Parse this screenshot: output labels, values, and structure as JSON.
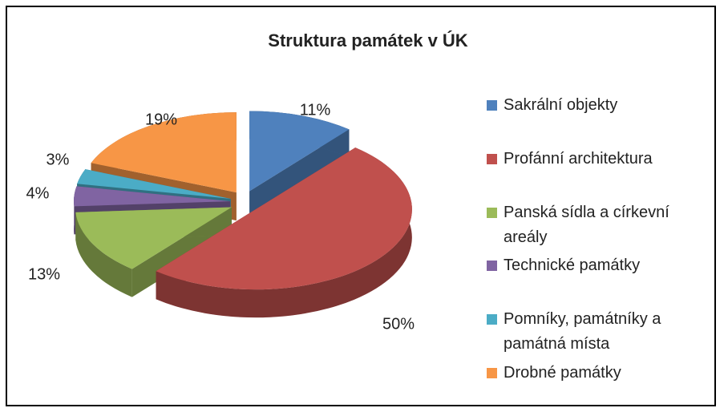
{
  "chart_data": {
    "type": "pie",
    "title": "Struktura památek v ÚK",
    "categories": [
      "Sakrální objekty",
      "Profánní architektura",
      "Panská sídla a církevní areály",
      "Technické památky",
      "Pomníky, památníky a památná místa",
      "Drobné památky"
    ],
    "values": [
      11,
      50,
      13,
      4,
      3,
      19
    ],
    "value_labels": [
      "11%",
      "50%",
      "13%",
      "4%",
      "3%",
      "19%"
    ],
    "colors": [
      "#4f81bd",
      "#c0504d",
      "#9bbb59",
      "#8064a2",
      "#4bacc6",
      "#f79646"
    ],
    "legend": "right"
  }
}
